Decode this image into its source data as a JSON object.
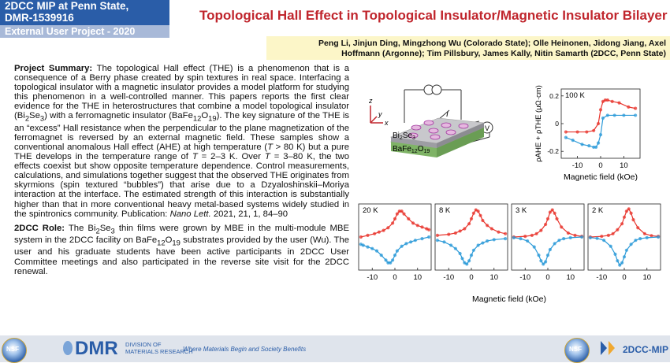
{
  "header": {
    "line1": "2DCC MIP at Penn State,",
    "line2": "DMR-1539916",
    "subtitle": "External User Project - 2020",
    "title": "Topological Hall Effect in  Topological Insulator/Magnetic Insulator Bilayer"
  },
  "authors": {
    "line1": "Peng Li, Jinjun Ding, Mingzhong Wu (Colorado State); Olle Heinonen, Jidong Jiang, Axel",
    "line2": "Hoffmann (Argonne); Tim Pillsbury, James Kally, Nitin Samarth (2DCC, Penn State)"
  },
  "summary": {
    "label": "Project Summary:",
    "t1": " The topological Hall effect (THE) is a phenomenon that is a consequence of a Berry phase created by spin textures in real space. Interfacing a topological insulator with a magnetic insulator provides a model platform for studying this phenomenon in a well-controlled manner. This papers reports the first clear evidence for the THE in heterostructures that combine a model topological insulator (Bi",
    "sub_bi": "2",
    "t2": "Se",
    "sub_se": "3",
    "t3": ") with a ferromagnetic insulator (BaFe",
    "sub_fe": "12",
    "t4": "O",
    "sub_o": "19",
    "t5": "). The key signature of the THE is an “excess” Hall resistance when the perpendicular to the plane magnetization of the ferromagnet is reversed by an external magnetic field. These samples show a conventional anomalous Hall effect (AHE) at high temperature (",
    "t_italic1": "T",
    "t6": " > 80 K) but a pure THE develops in the temperature range of ",
    "t_italic2": "T",
    "t7": " = 2–3 K. Over ",
    "t_italic3": "T",
    "t8": " = 3–80 K, the two effects coexist but show opposite temperature dependence. Control measurements, calculations, and simulations together suggest that the observed THE originates from skyrmions (spin textured “bubbles”) that arise due to a Dzyaloshinskii–Moriya interaction at the interface. The estimated strength of this interaction is substantially higher than that in more conventional heavy metal-based systems widely studied in the spintronics community. Publication: ",
    "journal": "Nano Lett.",
    "t9": " 2021, 21, 1, 84–90"
  },
  "role": {
    "label": "2DCC Role:",
    "t1": " The Bi",
    "sub_bi": "2",
    "t2": "Se",
    "sub_se": "3",
    "t3": " thin films were grown by MBE in the multi-module MBE system in the 2DCC facility on BaFe",
    "sub_fe": "12",
    "t4": "O",
    "sub_o": "19",
    "t5": " substrates provided by the user (Wu). The user and his graduate students have been active participants in 2DCC User Committee meetings and also participated in the reverse site visit for the 2DCC renewal."
  },
  "device": {
    "layer_top": "Bi",
    "layer_top_sub1": "2",
    "layer_top_mid": "Se",
    "layer_top_sub2": "3",
    "layer_bottom": "BaFe",
    "layer_bottom_sub1": "12",
    "layer_bottom_mid": "O",
    "layer_bottom_sub2": "19",
    "current_label": "I",
    "voltmeter_label": "V",
    "axis_x": "x",
    "axis_y": "y",
    "axis_z": "z"
  },
  "chart_data": [
    {
      "type": "line",
      "panel_label": "100 K",
      "xlabel": "Magnetic field (kOe)",
      "ylabel": "ρAHE + ρTHE (μΩ·cm)",
      "x_ticks": [
        -10,
        0,
        10
      ],
      "y_ticks": [
        -0.2,
        0,
        0.2
      ],
      "xlim": [
        -17,
        17
      ],
      "ylim": [
        -0.25,
        0.25
      ],
      "series": [
        {
          "color": "#e8342c",
          "x": [
            -15,
            -10,
            -6,
            -3,
            -1,
            0,
            1,
            2,
            3,
            5,
            8,
            12,
            15
          ],
          "y": [
            -0.06,
            -0.06,
            -0.06,
            -0.05,
            0.0,
            0.1,
            0.16,
            0.17,
            0.17,
            0.16,
            0.15,
            0.12,
            0.11
          ]
        },
        {
          "color": "#2b9ad8",
          "x": [
            -15,
            -12,
            -8,
            -5,
            -3,
            -2,
            -1,
            0,
            1,
            3,
            6,
            10,
            15
          ],
          "y": [
            -0.1,
            -0.12,
            -0.15,
            -0.16,
            -0.17,
            -0.17,
            -0.14,
            -0.08,
            0.04,
            0.06,
            0.06,
            0.06,
            0.06
          ]
        }
      ]
    },
    {
      "type": "line",
      "panel_label": "20 K",
      "xlabel": "Magnetic field (kOe)",
      "x_ticks": [
        -10,
        0,
        10
      ],
      "xlim": [
        -16,
        16
      ],
      "ylim": [
        -1,
        1
      ],
      "series": [
        {
          "color": "#e8342c",
          "x": [
            -15,
            -12,
            -9,
            -7,
            -5,
            -3,
            -1,
            0,
            1,
            2,
            3,
            4,
            6,
            8,
            10,
            12,
            14,
            15
          ],
          "y": [
            0.0,
            0.05,
            0.1,
            0.15,
            0.2,
            0.28,
            0.42,
            0.55,
            0.7,
            0.78,
            0.78,
            0.7,
            0.55,
            0.42,
            0.35,
            0.3,
            0.25,
            0.22
          ]
        },
        {
          "color": "#2b9ad8",
          "x": [
            -15,
            -14,
            -12,
            -10,
            -8,
            -6,
            -4,
            -3,
            -2,
            -1,
            0,
            1,
            3,
            5,
            7,
            9,
            12,
            15
          ],
          "y": [
            -0.22,
            -0.25,
            -0.3,
            -0.35,
            -0.42,
            -0.55,
            -0.7,
            -0.78,
            -0.78,
            -0.7,
            -0.55,
            -0.42,
            -0.28,
            -0.2,
            -0.15,
            -0.1,
            -0.05,
            0.0
          ]
        }
      ]
    },
    {
      "type": "line",
      "panel_label": "8 K",
      "x_ticks": [
        -10,
        0,
        10
      ],
      "xlim": [
        -16,
        16
      ],
      "ylim": [
        -1,
        1
      ],
      "series": [
        {
          "color": "#e8342c",
          "x": [
            -15,
            -10,
            -7,
            -5,
            -3,
            -1,
            0,
            1,
            2,
            3,
            4,
            5,
            7,
            9,
            12,
            15
          ],
          "y": [
            0.05,
            0.08,
            0.12,
            0.18,
            0.25,
            0.4,
            0.55,
            0.72,
            0.82,
            0.78,
            0.65,
            0.5,
            0.35,
            0.25,
            0.15,
            0.1
          ]
        },
        {
          "color": "#2b9ad8",
          "x": [
            -15,
            -12,
            -9,
            -7,
            -5,
            -4,
            -3,
            -2,
            -1,
            0,
            1,
            3,
            5,
            7,
            10,
            15
          ],
          "y": [
            -0.1,
            -0.15,
            -0.25,
            -0.35,
            -0.5,
            -0.65,
            -0.78,
            -0.82,
            -0.72,
            -0.55,
            -0.4,
            -0.25,
            -0.18,
            -0.12,
            -0.08,
            -0.05
          ]
        }
      ]
    },
    {
      "type": "line",
      "panel_label": "3 K",
      "x_ticks": [
        -10,
        0,
        10
      ],
      "xlim": [
        -16,
        16
      ],
      "ylim": [
        -1,
        1
      ],
      "series": [
        {
          "color": "#e8342c",
          "x": [
            -15,
            -10,
            -7,
            -5,
            -3,
            -1,
            0,
            1,
            2,
            3,
            4,
            6,
            9,
            12,
            15
          ],
          "y": [
            0.0,
            0.02,
            0.05,
            0.1,
            0.2,
            0.38,
            0.55,
            0.75,
            0.82,
            0.72,
            0.55,
            0.3,
            0.12,
            0.05,
            0.02
          ]
        },
        {
          "color": "#2b9ad8",
          "x": [
            -15,
            -12,
            -9,
            -6,
            -4,
            -3,
            -2,
            -1,
            0,
            1,
            3,
            5,
            7,
            10,
            15
          ],
          "y": [
            -0.02,
            -0.05,
            -0.12,
            -0.3,
            -0.55,
            -0.72,
            -0.82,
            -0.75,
            -0.55,
            -0.38,
            -0.2,
            -0.1,
            -0.05,
            -0.02,
            0.0
          ]
        }
      ]
    },
    {
      "type": "line",
      "panel_label": "2 K",
      "x_ticks": [
        -10,
        0,
        10
      ],
      "xlim": [
        -16,
        16
      ],
      "ylim": [
        -1,
        1
      ],
      "series": [
        {
          "color": "#e8342c",
          "x": [
            -15,
            -10,
            -7,
            -5,
            -3,
            -1,
            0,
            1,
            2,
            3,
            4,
            6,
            9,
            12,
            15
          ],
          "y": [
            0.0,
            0.02,
            0.05,
            0.1,
            0.22,
            0.4,
            0.6,
            0.78,
            0.85,
            0.72,
            0.52,
            0.28,
            0.1,
            0.04,
            0.02
          ]
        },
        {
          "color": "#2b9ad8",
          "x": [
            -15,
            -12,
            -9,
            -6,
            -4,
            -3,
            -2,
            -1,
            0,
            1,
            3,
            5,
            7,
            10,
            15
          ],
          "y": [
            -0.02,
            -0.04,
            -0.1,
            -0.28,
            -0.52,
            -0.72,
            -0.85,
            -0.78,
            -0.6,
            -0.4,
            -0.22,
            -0.1,
            -0.05,
            -0.02,
            0.0
          ]
        }
      ]
    }
  ],
  "shared_xlabel": "Magnetic field (kOe)",
  "footer": {
    "dmr": "DMR",
    "dmr_sub1": "DIVISION OF",
    "dmr_sub2": "MATERIALS RESEARCH",
    "tagline": "Where Materials Begin and Society Benefits",
    "mip": "2DCC-MIP",
    "nsf": "NSF"
  }
}
